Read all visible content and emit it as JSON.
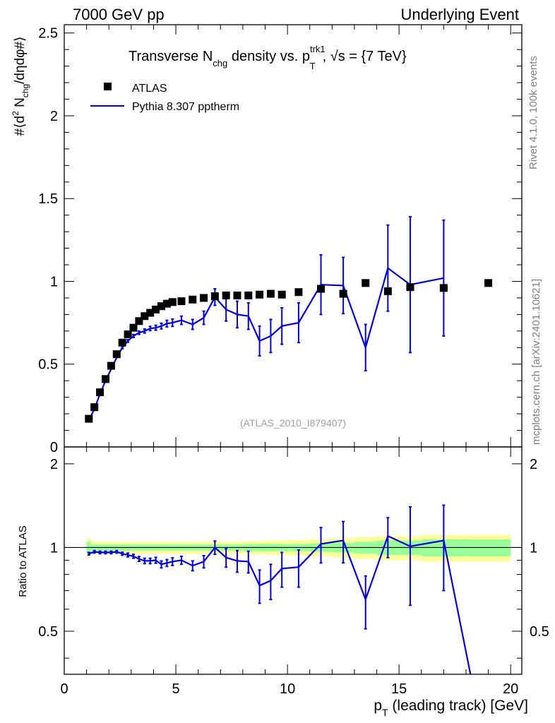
{
  "header": {
    "left": "7000 GeV pp",
    "right": "Underlying Event"
  },
  "title": {
    "prefix": "Transverse N",
    "sub1": "chg",
    "mid": " density vs. p",
    "sup": "trk1",
    "sub2": "T",
    "suffix": ", √s = {7 TeV}"
  },
  "side_labels": {
    "rivet": "Rivet 4.1.0,  100k events",
    "mcplots": "mcplots.cern.ch [arXiv:2401.10621]"
  },
  "watermark": "(ATLAS_2010_I879407)",
  "ylabel_main": "#⟨d² N_chg/dηdφ#⟩",
  "ylabel_ratio": "Ratio to ATLAS",
  "xlabel": "p_T (leading track) [GeV]",
  "colors": {
    "data": "#000000",
    "mc": "#0000e0",
    "band_inner": "#99ff99",
    "band_outer": "#ffff99",
    "frame": "#000000"
  },
  "chart_data": [
    {
      "id": "main",
      "type": "scatter",
      "title": "Transverse N_chg density vs. p_T^trk1, √s = {7 TeV}",
      "xlabel": "p_T (leading track) [GeV]",
      "ylabel": "#⟨d² N_chg/dηdφ#⟩",
      "xlim": [
        0,
        20.5
      ],
      "ylim": [
        0,
        2.55
      ],
      "xticks": [
        0,
        5,
        10,
        15,
        20
      ],
      "yticks": [
        {
          "v": 0,
          "label": "0"
        },
        {
          "v": 0.5,
          "label": "0.5"
        },
        {
          "v": 1,
          "label": "1"
        },
        {
          "v": 1.5,
          "label": "1.5"
        },
        {
          "v": 2,
          "label": "2"
        },
        {
          "v": 2.5,
          "label": "2.5"
        }
      ],
      "legend": {
        "position": "top-left",
        "entries": [
          "ATLAS",
          "Pythia 8.307 pptherm"
        ]
      },
      "series": [
        {
          "name": "ATLAS",
          "kind": "markers",
          "x": [
            1.1,
            1.35,
            1.6,
            1.85,
            2.1,
            2.35,
            2.6,
            2.85,
            3.1,
            3.35,
            3.6,
            3.85,
            4.1,
            4.35,
            4.6,
            4.85,
            5.25,
            5.75,
            6.25,
            6.75,
            7.25,
            7.75,
            8.25,
            8.75,
            9.25,
            9.75,
            10.5,
            11.5,
            12.5,
            13.5,
            14.5,
            15.5,
            17.0,
            19.0
          ],
          "y": [
            0.17,
            0.24,
            0.33,
            0.41,
            0.49,
            0.56,
            0.63,
            0.68,
            0.72,
            0.76,
            0.79,
            0.81,
            0.83,
            0.85,
            0.865,
            0.875,
            0.88,
            0.89,
            0.9,
            0.91,
            0.915,
            0.915,
            0.915,
            0.92,
            0.925,
            0.92,
            0.935,
            0.955,
            0.925,
            0.99,
            0.94,
            0.965,
            0.96,
            0.99
          ]
        },
        {
          "name": "Pythia 8.307 pptherm",
          "kind": "line",
          "x": [
            1.1,
            1.35,
            1.6,
            1.85,
            2.1,
            2.35,
            2.6,
            2.85,
            3.1,
            3.35,
            3.6,
            3.85,
            4.1,
            4.35,
            4.6,
            4.85,
            5.25,
            5.75,
            6.25,
            6.75,
            7.25,
            7.75,
            8.25,
            8.75,
            9.25,
            9.75,
            10.5,
            11.5,
            12.5,
            13.5,
            14.5,
            15.5,
            17.0
          ],
          "y": [
            0.16,
            0.23,
            0.32,
            0.4,
            0.47,
            0.54,
            0.6,
            0.64,
            0.67,
            0.69,
            0.7,
            0.715,
            0.72,
            0.73,
            0.745,
            0.75,
            0.765,
            0.74,
            0.78,
            0.905,
            0.83,
            0.8,
            0.79,
            0.64,
            0.67,
            0.73,
            0.75,
            0.98,
            0.975,
            0.6,
            1.08,
            0.98,
            1.02
          ],
          "err": [
            0.004,
            0.004,
            0.005,
            0.005,
            0.006,
            0.006,
            0.007,
            0.008,
            0.009,
            0.01,
            0.012,
            0.013,
            0.015,
            0.017,
            0.02,
            0.022,
            0.025,
            0.03,
            0.04,
            0.05,
            0.07,
            0.08,
            0.08,
            0.09,
            0.1,
            0.11,
            0.12,
            0.18,
            0.17,
            0.14,
            0.26,
            0.41,
            0.35
          ]
        }
      ]
    },
    {
      "id": "ratio",
      "type": "line",
      "ylabel": "Ratio to ATLAS",
      "xlim": [
        0,
        20.5
      ],
      "ylim": [
        0.35,
        2.3
      ],
      "yticks": [
        {
          "v": 0.5,
          "label": "0.5"
        },
        {
          "v": 1,
          "label": "1"
        },
        {
          "v": 2,
          "label": "2"
        }
      ],
      "band_edges": [
        1.0,
        1.2,
        1.5,
        2.0,
        3.0,
        4.0,
        5.0,
        6.0,
        7.0,
        8.0,
        9.0,
        10.0,
        11.0,
        12.0,
        13.0,
        14.0,
        15.0,
        16.0,
        18.0,
        20.0
      ],
      "band_inner": [
        0.05,
        0.025,
        0.025,
        0.025,
        0.025,
        0.025,
        0.025,
        0.025,
        0.025,
        0.03,
        0.03,
        0.03,
        0.035,
        0.04,
        0.05,
        0.06,
        0.06,
        0.07,
        0.07
      ],
      "band_outer": [
        0.08,
        0.05,
        0.05,
        0.05,
        0.05,
        0.05,
        0.05,
        0.05,
        0.05,
        0.055,
        0.06,
        0.065,
        0.07,
        0.08,
        0.09,
        0.1,
        0.1,
        0.11,
        0.11
      ],
      "series": [
        {
          "name": "Pythia 8.307 pptherm / ATLAS",
          "x": [
            1.1,
            1.35,
            1.6,
            1.85,
            2.1,
            2.35,
            2.6,
            2.85,
            3.1,
            3.35,
            3.6,
            3.85,
            4.1,
            4.35,
            4.6,
            4.85,
            5.25,
            5.75,
            6.25,
            6.75,
            7.25,
            7.75,
            8.25,
            8.75,
            9.25,
            9.75,
            10.5,
            11.5,
            12.5,
            13.5,
            14.5,
            15.5,
            17.0,
            18.2
          ],
          "y": [
            0.95,
            0.965,
            0.96,
            0.96,
            0.96,
            0.965,
            0.95,
            0.94,
            0.93,
            0.91,
            0.895,
            0.895,
            0.9,
            0.87,
            0.88,
            0.89,
            0.9,
            0.86,
            0.89,
            1.0,
            0.92,
            0.895,
            0.89,
            0.73,
            0.76,
            0.84,
            0.85,
            1.03,
            1.06,
            0.65,
            1.1,
            1.01,
            1.06,
            0.35
          ],
          "err": [
            0.01,
            0.01,
            0.01,
            0.01,
            0.01,
            0.01,
            0.012,
            0.015,
            0.015,
            0.018,
            0.02,
            0.02,
            0.022,
            0.025,
            0.025,
            0.028,
            0.03,
            0.035,
            0.045,
            0.055,
            0.07,
            0.08,
            0.08,
            0.1,
            0.11,
            0.12,
            0.13,
            0.15,
            0.18,
            0.14,
            0.18,
            0.39,
            0.36,
            0
          ]
        }
      ]
    }
  ]
}
